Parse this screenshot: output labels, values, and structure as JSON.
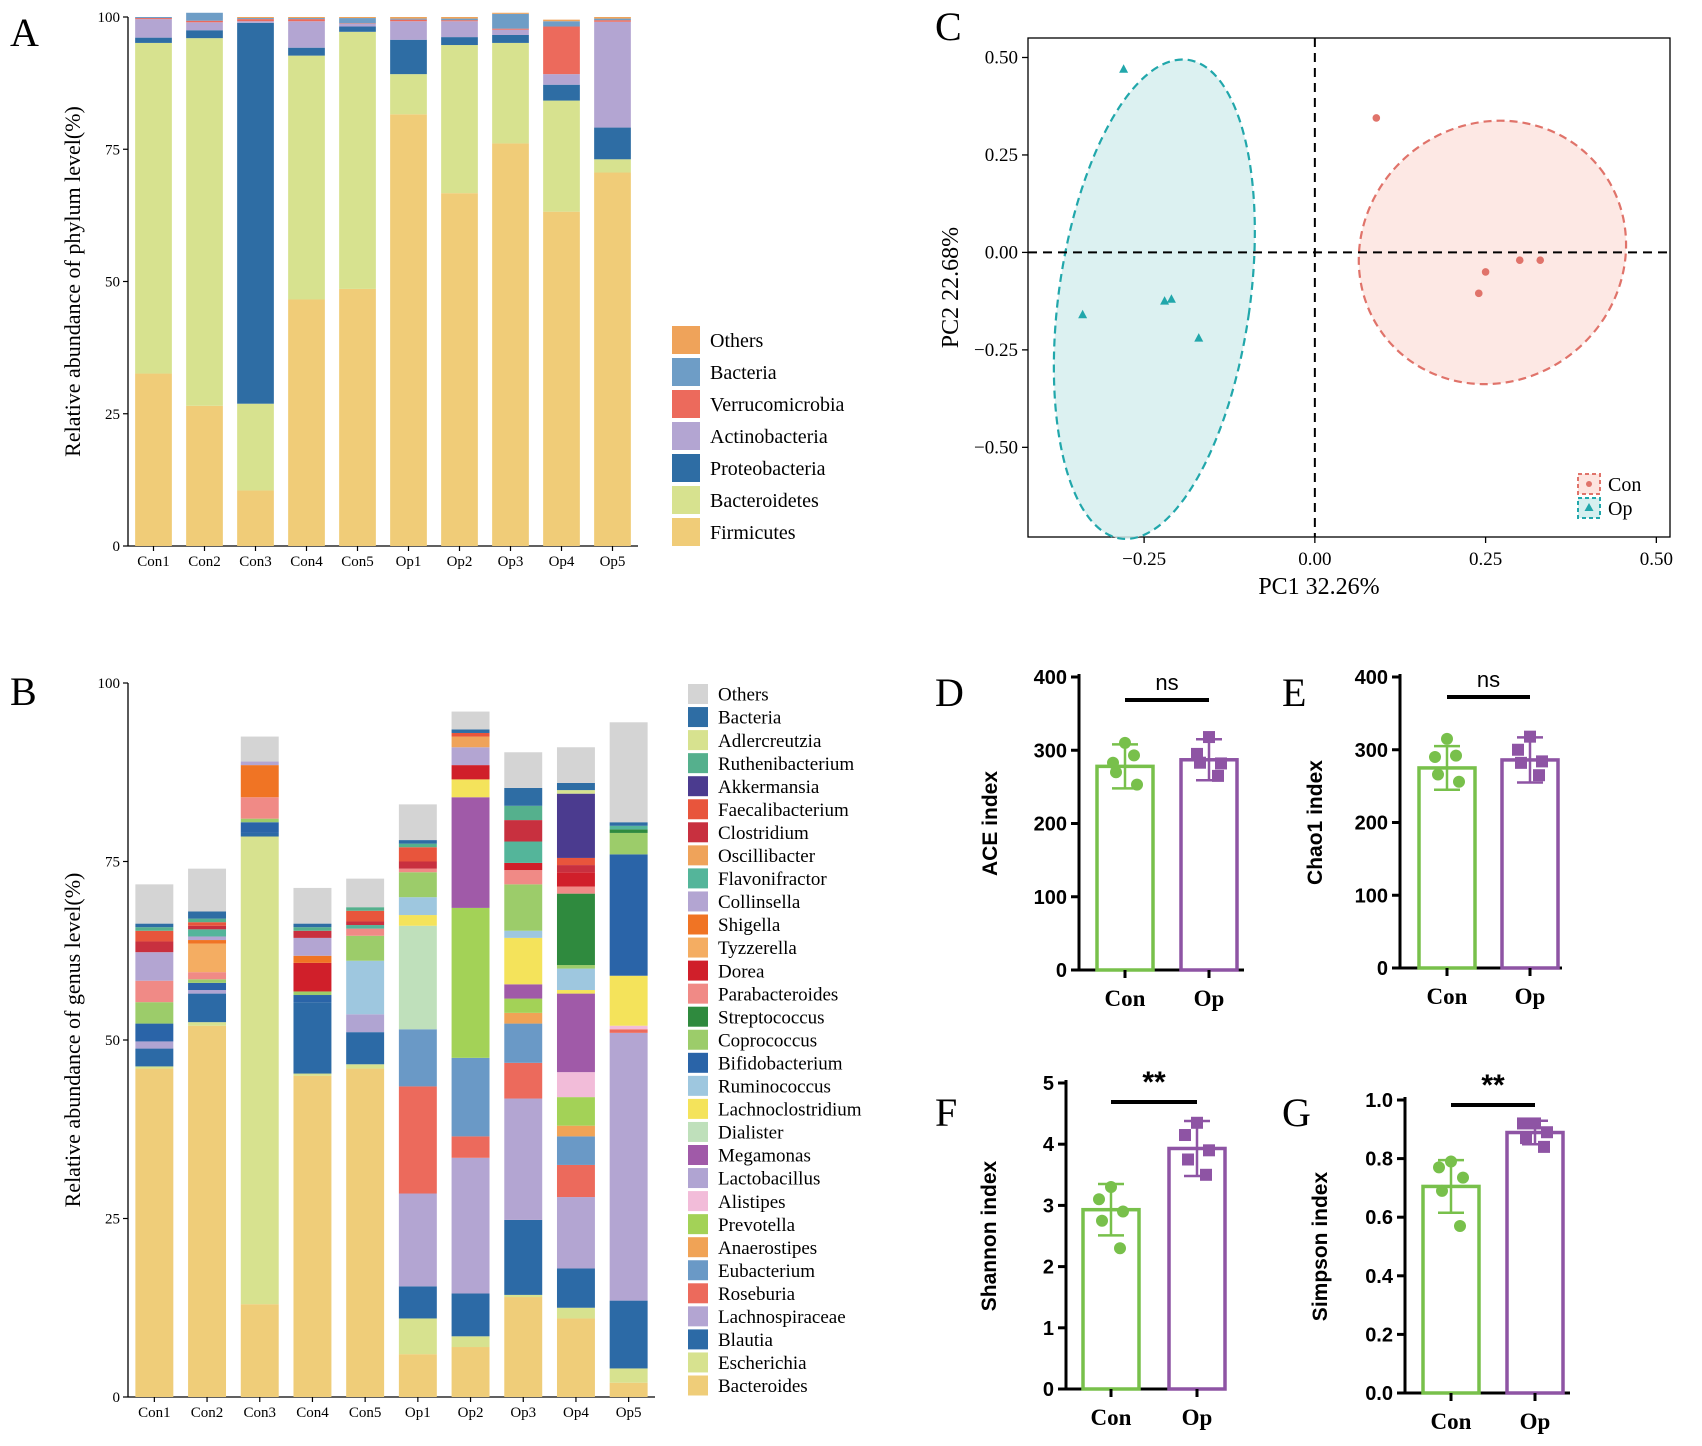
{
  "colors": {
    "Others": "#efa35a",
    "Bacteria": "#6e9dc6",
    "Verrucomicrobia": "#ec6a5c",
    "Actinobacteria": "#b3a5d2",
    "Proteobacteria": "#2e6da4",
    "Bacteroidetes": "#d7e28f",
    "Firmicutes": "#f0cc78",
    "g_Others": "#d4d4d4",
    "g_Bacteria": "#2e6da4",
    "g_Adlercreutzia": "#d7e28f",
    "g_Ruthenibacterium": "#55b08d",
    "g_Akkermansia": "#4b3b8f",
    "g_Faecalibacterium": "#e8553c",
    "g_Clostridium": "#c8303f",
    "g_Oscillibacter": "#efa35a",
    "g_Flavonifractor": "#54b59a",
    "g_Collinsella": "#b3a5d2",
    "g_Shigella": "#f07424",
    "g_Tyzzerella": "#f4ad62",
    "g_Dorea": "#d01f2a",
    "g_Parabacteroides": "#f08a86",
    "g_Streptococcus": "#2f8a3e",
    "g_Coprococcus": "#9ccc6a",
    "g_Bifidobacterium": "#2a64a8",
    "g_Ruminococcus": "#9ec7df",
    "g_Lachnoclostridium": "#f4e35b",
    "g_Dialister": "#bfe0bb",
    "g_Megamonas": "#a05aa8",
    "g_Lactobacillus": "#b0a4d2",
    "g_Alistipes": "#f2bcd9",
    "g_Prevotella": "#a3d257",
    "g_Anaerostipes": "#f0a356",
    "g_Eubacterium": "#6a99c6",
    "g_Roseburia": "#ec6a5c",
    "g_Lachnospiraceae": "#b3a5d2",
    "g_Blautia": "#2c6aa6",
    "g_Escherichia": "#d7e28f",
    "g_Bacteroides": "#efcd79",
    "con": "#78c04b",
    "op": "#8e54a4",
    "con_pca": "#e0736a",
    "op_pca": "#21a7ab"
  },
  "panels": {
    "A": "A",
    "B": "B",
    "C": "C",
    "D": "D",
    "E": "E",
    "F": "F",
    "G": "G"
  },
  "chart_data": [
    {
      "id": "A",
      "type": "bar",
      "stacked": true,
      "title": "",
      "ylabel": "Relative abundance of phylum level(%)",
      "xlabel": "",
      "ylim": [
        0,
        100
      ],
      "yticks": [
        "0",
        "25",
        "50",
        "75",
        "100"
      ],
      "categories": [
        "Con1",
        "Con2",
        "Con3",
        "Con4",
        "Con5",
        "Op1",
        "Op2",
        "Op3",
        "Op4",
        "Op5"
      ],
      "legend": [
        "Others",
        "Bacteria",
        "Verrucomicrobia",
        "Actinobacteria",
        "Proteobacteria",
        "Bacteroidetes",
        "Firmicutes"
      ],
      "series": [
        {
          "name": "Firmicutes",
          "values": [
            32.6,
            26.5,
            10.5,
            46.6,
            48.6,
            81.6,
            66.7,
            76.1,
            63.2,
            70.6
          ]
        },
        {
          "name": "Bacteroidetes",
          "values": [
            62.5,
            69.5,
            16.4,
            46.1,
            48.6,
            7.6,
            28.0,
            19.0,
            21.0,
            2.5
          ]
        },
        {
          "name": "Proteobacteria",
          "values": [
            1.0,
            1.5,
            72.0,
            1.5,
            1.0,
            6.5,
            1.5,
            1.5,
            3.0,
            6.0
          ]
        },
        {
          "name": "Actinobacteria",
          "values": [
            3.5,
            1.5,
            0.3,
            5.0,
            0.5,
            3.5,
            3.0,
            1.0,
            2.0,
            20.0
          ]
        },
        {
          "name": "Verrucomicrobia",
          "values": [
            0.2,
            0.3,
            0.4,
            0.4,
            0.1,
            0.3,
            0.2,
            0.2,
            9.0,
            0.3
          ]
        },
        {
          "name": "Bacteria",
          "values": [
            0.2,
            1.5,
            0.2,
            0.2,
            1.0,
            0.2,
            0.3,
            2.8,
            1.0,
            0.3
          ]
        },
        {
          "name": "Others",
          "values": [
            0.0,
            0.0,
            0.2,
            0.2,
            0.2,
            0.3,
            0.3,
            0.2,
            0.3,
            0.3
          ]
        }
      ]
    },
    {
      "id": "B",
      "type": "bar",
      "stacked": true,
      "title": "",
      "ylabel": "Relative abundance of genus level(%)",
      "xlabel": "",
      "ylim": [
        0,
        100
      ],
      "yticks": [
        "0",
        "25",
        "50",
        "75",
        "100"
      ],
      "categories": [
        "Con1",
        "Con2",
        "Con3",
        "Con4",
        "Con5",
        "Op1",
        "Op2",
        "Op3",
        "Op4",
        "Op5"
      ],
      "legend": [
        "Others",
        "Bacteria",
        "Adlercreutzia",
        "Ruthenibacterium",
        "Akkermansia",
        "Faecalibacterium",
        "Clostridium",
        "Oscillibacter",
        "Flavonifractor",
        "Collinsella",
        "Shigella",
        "Tyzzerella",
        "Dorea",
        "Parabacteroides",
        "Streptococcus",
        "Coprococcus",
        "Bifidobacterium",
        "Ruminococcus",
        "Lachnoclostridium",
        "Dialister",
        "Megamonas",
        "Lactobacillus",
        "Alistipes",
        "Prevotella",
        "Anaerostipes",
        "Eubacterium",
        "Roseburia",
        "Lachnospiraceae",
        "Blautia",
        "Escherichia",
        "Bacteroides"
      ],
      "series": [
        {
          "name": "Bacteroides",
          "values": [
            46,
            52,
            13,
            45,
            46,
            6,
            7,
            14,
            11,
            2
          ]
        },
        {
          "name": "Escherichia",
          "values": [
            0.3,
            0.5,
            65.5,
            0.3,
            0.6,
            5,
            1.5,
            0.3,
            1.5,
            2
          ]
        },
        {
          "name": "Blautia",
          "values": [
            2.5,
            4,
            0.5,
            10,
            4.5,
            4.5,
            6,
            10.5,
            5.5,
            9.5
          ]
        },
        {
          "name": "Lachnospiraceae",
          "values": [
            0,
            0,
            0,
            0,
            0,
            13,
            19,
            17,
            10,
            37.5
          ]
        },
        {
          "name": "Roseburia",
          "values": [
            0,
            0,
            0,
            0,
            0,
            15,
            3,
            5,
            4.5,
            0.5
          ]
        },
        {
          "name": "Eubacterium",
          "values": [
            0,
            0,
            0,
            0,
            0,
            8,
            11,
            5.5,
            4,
            0
          ]
        },
        {
          "name": "Anaerostipes",
          "values": [
            0,
            0,
            0,
            0,
            0,
            0,
            0,
            1.5,
            1.5,
            0
          ]
        },
        {
          "name": "Prevotella",
          "values": [
            0,
            0,
            0,
            0,
            0,
            0,
            21,
            2,
            4,
            0
          ]
        },
        {
          "name": "Alistipes",
          "values": [
            0,
            0,
            0,
            0,
            0,
            0,
            0,
            0,
            3.5,
            0.5
          ]
        },
        {
          "name": "Lactobacillus",
          "values": [
            1,
            0.5,
            0,
            0,
            2.5,
            0,
            0,
            0,
            0,
            0
          ]
        },
        {
          "name": "Megamonas",
          "values": [
            0,
            0,
            0,
            0,
            0,
            0,
            15.5,
            2,
            11,
            0
          ]
        },
        {
          "name": "Dialister",
          "values": [
            0,
            0,
            0,
            0,
            0,
            14.5,
            0,
            0,
            0,
            0
          ]
        },
        {
          "name": "Lachnoclostridium",
          "values": [
            0,
            0,
            0,
            0,
            0,
            1.5,
            2.5,
            6.5,
            0.5,
            7
          ]
        },
        {
          "name": "Ruminococcus",
          "values": [
            0,
            0,
            0,
            0,
            7.5,
            2.5,
            0,
            1,
            3,
            0
          ]
        },
        {
          "name": "Bifidobacterium",
          "values": [
            2.5,
            1,
            1.5,
            1,
            0,
            0,
            0,
            0,
            0,
            17
          ]
        },
        {
          "name": "Coprococcus",
          "values": [
            3,
            0.5,
            0.5,
            0.5,
            3.5,
            3.5,
            0,
            6.5,
            0.5,
            3
          ]
        },
        {
          "name": "Streptococcus",
          "values": [
            0,
            0,
            0,
            0,
            0,
            0,
            0,
            0,
            10,
            0.5
          ]
        },
        {
          "name": "Parabacteroides",
          "values": [
            3,
            1,
            3,
            0,
            1,
            0.5,
            0,
            2,
            1,
            0
          ]
        },
        {
          "name": "Dorea",
          "values": [
            0,
            0,
            0,
            4,
            0,
            0,
            2,
            1,
            2,
            0
          ]
        },
        {
          "name": "Tyzzerella",
          "values": [
            0,
            4,
            0,
            0,
            0,
            0,
            0,
            0,
            0,
            0
          ]
        },
        {
          "name": "Shigella",
          "values": [
            0,
            0.5,
            4.5,
            1,
            0,
            0,
            0,
            0,
            0,
            0
          ]
        },
        {
          "name": "Collinsella",
          "values": [
            4,
            0.5,
            0.5,
            2.5,
            0,
            0,
            2.5,
            0,
            0,
            0
          ]
        },
        {
          "name": "Flavonifractor",
          "values": [
            0,
            1,
            0,
            0,
            0.5,
            0,
            0,
            3,
            0,
            0.5
          ]
        },
        {
          "name": "Oscillibacter",
          "values": [
            0,
            0,
            0,
            0,
            0,
            0,
            1.5,
            0,
            0,
            0
          ]
        },
        {
          "name": "Clostridium",
          "values": [
            1.5,
            0.5,
            0,
            1,
            0.5,
            1,
            0,
            3,
            1,
            0
          ]
        },
        {
          "name": "Faecalibacterium",
          "values": [
            1.5,
            0.5,
            0,
            0,
            1.5,
            2,
            0.5,
            0,
            1,
            0
          ]
        },
        {
          "name": "Akkermansia",
          "values": [
            0,
            0,
            0,
            0,
            0,
            0,
            0,
            0,
            9,
            0
          ]
        },
        {
          "name": "Ruthenibacterium",
          "values": [
            0.5,
            0.5,
            0,
            0.5,
            0.5,
            0.5,
            0,
            2,
            0,
            0
          ]
        },
        {
          "name": "Adlercreutzia",
          "values": [
            0,
            0,
            0,
            0,
            0,
            0,
            0,
            0,
            0.5,
            0
          ]
        },
        {
          "name": "Bacteria",
          "values": [
            0.5,
            1,
            0,
            0.5,
            0,
            0.5,
            0.5,
            2.5,
            1,
            0.5
          ]
        },
        {
          "name": "Others",
          "values": [
            5.5,
            6,
            3.5,
            5,
            4,
            5,
            2.5,
            5,
            5,
            14
          ]
        }
      ]
    },
    {
      "id": "C",
      "type": "scatter",
      "xlabel": "PC1 32.26%",
      "ylabel": "PC2 22.68%",
      "xlim": [
        -0.42,
        0.52
      ],
      "ylim": [
        -0.73,
        0.55
      ],
      "xticks": [
        -0.25,
        0.0,
        0.25,
        0.5
      ],
      "xtick_labels": [
        "−0.25",
        "0.00",
        "0.25",
        "0.50"
      ],
      "yticks": [
        -0.5,
        -0.25,
        0.0,
        0.25,
        0.5
      ],
      "ytick_labels": [
        "−0.50",
        "−0.25",
        "0.00",
        "0.25",
        "0.50"
      ],
      "legend": [
        "Con",
        "Op"
      ],
      "series": [
        {
          "name": "Con",
          "marker": "circle",
          "points": [
            [
              0.09,
              0.345
            ],
            [
              0.25,
              -0.05
            ],
            [
              0.24,
              -0.105
            ],
            [
              0.3,
              -0.02
            ],
            [
              0.33,
              -0.02
            ]
          ],
          "ellipse": {
            "center": [
              0.26,
              0.0
            ],
            "rx": 0.2,
            "ry": 0.33,
            "angle": -38
          }
        },
        {
          "name": "Op",
          "marker": "triangle",
          "points": [
            [
              -0.28,
              0.47
            ],
            [
              -0.34,
              -0.16
            ],
            [
              -0.22,
              -0.125
            ],
            [
              -0.21,
              -0.12
            ],
            [
              -0.17,
              -0.22
            ]
          ],
          "ellipse": {
            "center": [
              -0.235,
              -0.12
            ],
            "rx": 0.14,
            "ry": 0.62,
            "angle": 8
          }
        }
      ]
    },
    {
      "id": "D",
      "type": "bar",
      "ylabel": "ACE index",
      "ylim": [
        0,
        400
      ],
      "yticks": [
        "0",
        "100",
        "200",
        "300",
        "400"
      ],
      "categories": [
        "Con",
        "Op"
      ],
      "values": [
        278,
        287
      ],
      "sd": [
        30,
        28
      ],
      "points": [
        [
          310,
          283,
          253,
          270,
          293
        ],
        [
          318,
          295,
          282,
          283,
          265
        ]
      ],
      "significance": "ns"
    },
    {
      "id": "E",
      "type": "bar",
      "ylabel": "Chao1 index",
      "ylim": [
        0,
        400
      ],
      "yticks": [
        "0",
        "100",
        "200",
        "300",
        "400"
      ],
      "categories": [
        "Con",
        "Op"
      ],
      "values": [
        275,
        286
      ],
      "sd": [
        30,
        31
      ],
      "points": [
        [
          315,
          290,
          256,
          266,
          292
        ],
        [
          318,
          300,
          284,
          282,
          265
        ]
      ],
      "significance": "ns"
    },
    {
      "id": "F",
      "type": "bar",
      "ylabel": "Shannon index",
      "ylim": [
        0,
        5
      ],
      "yticks": [
        "0",
        "1",
        "2",
        "3",
        "4",
        "5"
      ],
      "categories": [
        "Con",
        "Op"
      ],
      "values": [
        2.93,
        3.93
      ],
      "sd": [
        0.42,
        0.45
      ],
      "points": [
        [
          3.3,
          3.1,
          2.9,
          2.75,
          2.3
        ],
        [
          4.35,
          4.15,
          3.9,
          3.75,
          3.5
        ]
      ],
      "significance": "**"
    },
    {
      "id": "G",
      "type": "bar",
      "ylabel": "Simpson index",
      "ylim": [
        0,
        1.0
      ],
      "yticks": [
        "0.0",
        "0.2",
        "0.4",
        "0.6",
        "0.8",
        "1.0"
      ],
      "categories": [
        "Con",
        "Op"
      ],
      "values": [
        0.705,
        0.889
      ],
      "sd": [
        0.09,
        0.04
      ],
      "points": [
        [
          0.79,
          0.77,
          0.735,
          0.69,
          0.57
        ],
        [
          0.92,
          0.92,
          0.89,
          0.87,
          0.84
        ]
      ],
      "significance": "**"
    }
  ]
}
